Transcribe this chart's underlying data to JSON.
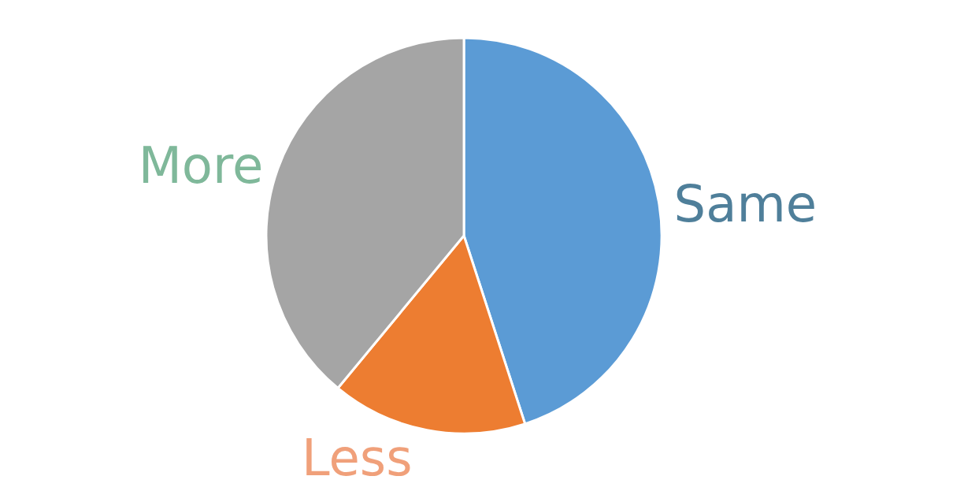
{
  "chart_data": {
    "type": "pie",
    "categories": [
      "Same",
      "Less",
      "More"
    ],
    "values": [
      45,
      16,
      39
    ],
    "colors": [
      "#5b9bd5",
      "#ed7d31",
      "#a5a5a5"
    ],
    "legend": false
  }
}
